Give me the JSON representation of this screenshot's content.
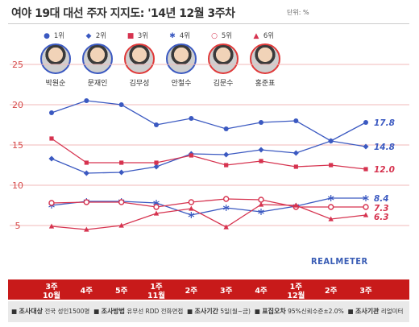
{
  "header": {
    "title": "여야 19대 대선 주자 지지도: '14년 12월 3주차",
    "unit": "단위: %"
  },
  "legend": [
    {
      "rank": "1위",
      "marker": "●",
      "color": "#3b59c1"
    },
    {
      "rank": "2위",
      "marker": "◆",
      "color": "#3b59c1"
    },
    {
      "rank": "3위",
      "marker": "■",
      "color": "#d6334f"
    },
    {
      "rank": "4위",
      "marker": "✱",
      "color": "#3b59c1"
    },
    {
      "rank": "5위",
      "marker": "○",
      "color": "#d6334f"
    },
    {
      "rank": "6위",
      "marker": "▲",
      "color": "#d6334f"
    }
  ],
  "candidates": [
    {
      "name": "박원순",
      "color": "blue"
    },
    {
      "name": "문재인",
      "color": "blue"
    },
    {
      "name": "김무성",
      "color": "red"
    },
    {
      "name": "안철수",
      "color": "blue"
    },
    {
      "name": "김문수",
      "color": "red"
    },
    {
      "name": "홍준표",
      "color": "red"
    }
  ],
  "brand": "REALMETER",
  "footer": [
    {
      "label": "조사대상",
      "text": "전국 성인1500명"
    },
    {
      "label": "조사방법",
      "text": "유무선 RDD 전화면접"
    },
    {
      "label": "조사기간",
      "text": "5일(월~금)"
    },
    {
      "label": "표집오차",
      "text": "95%신뢰수준±2.0%"
    },
    {
      "label": "조사기관",
      "text": "리얼미터"
    }
  ],
  "chart_data": {
    "type": "line",
    "title": "여야 19대 대선 주자 지지도: '14년 12월 3주차",
    "ylim": [
      0,
      25
    ],
    "y_ticks": [
      5,
      10,
      15,
      20,
      25
    ],
    "grid": true,
    "categories": [
      [
        "3주",
        "10월"
      ],
      [
        "4주",
        ""
      ],
      [
        "5주",
        ""
      ],
      [
        "1주",
        "11월"
      ],
      [
        "2주",
        ""
      ],
      [
        "3주",
        ""
      ],
      [
        "4주",
        ""
      ],
      [
        "1주",
        "12월"
      ],
      [
        "2주",
        ""
      ],
      [
        "3주",
        ""
      ]
    ],
    "series": [
      {
        "name": "박원순",
        "rank": "1위",
        "marker": "circle",
        "color": "#3b59c1",
        "values": [
          19.0,
          20.5,
          20.0,
          17.5,
          18.3,
          17.0,
          17.8,
          18.0,
          15.5,
          17.8
        ],
        "end_label": "17.8"
      },
      {
        "name": "문재인",
        "rank": "2위",
        "marker": "diamond",
        "color": "#3b59c1",
        "values": [
          13.3,
          11.5,
          11.6,
          12.3,
          13.9,
          13.8,
          14.4,
          14.0,
          15.5,
          14.8
        ],
        "end_label": "14.8"
      },
      {
        "name": "김무성",
        "rank": "3위",
        "marker": "square",
        "color": "#d6334f",
        "values": [
          15.8,
          12.8,
          12.8,
          12.8,
          13.7,
          12.5,
          13.0,
          12.3,
          12.5,
          12.0
        ],
        "end_label": "12.0"
      },
      {
        "name": "안철수",
        "rank": "4위",
        "marker": "asterisk",
        "color": "#3b59c1",
        "values": [
          7.5,
          8.0,
          8.0,
          7.8,
          6.3,
          7.2,
          6.7,
          7.4,
          8.4,
          8.4
        ],
        "end_label": "8.4"
      },
      {
        "name": "김문수",
        "rank": "5위",
        "marker": "hollow-circle",
        "color": "#d6334f",
        "values": [
          7.8,
          7.9,
          7.9,
          7.3,
          7.9,
          8.3,
          8.2,
          7.3,
          7.3,
          7.3
        ],
        "end_label": "7.3"
      },
      {
        "name": "홍준표",
        "rank": "6위",
        "marker": "triangle",
        "color": "#d6334f",
        "values": [
          4.9,
          4.5,
          5.0,
          6.5,
          7.1,
          4.8,
          7.6,
          7.5,
          5.8,
          6.3
        ],
        "end_label": "6.3"
      }
    ]
  }
}
